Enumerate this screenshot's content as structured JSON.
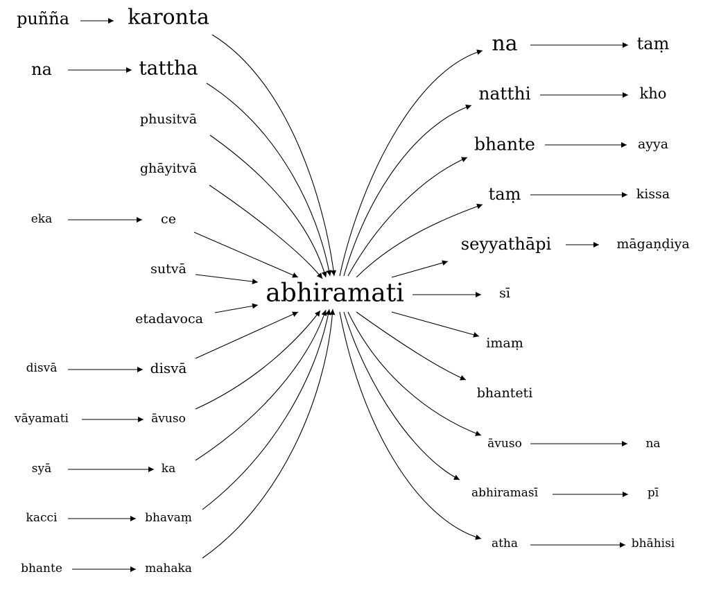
{
  "center": {
    "id": "c",
    "label": "abhiramati"
  },
  "nodes": [
    {
      "id": "L0a",
      "label": "puñña"
    },
    {
      "id": "L0",
      "label": "karonta"
    },
    {
      "id": "L1a",
      "label": "na"
    },
    {
      "id": "L1",
      "label": "tattha"
    },
    {
      "id": "L2",
      "label": "phusitvā"
    },
    {
      "id": "L3",
      "label": "ghāyitvā"
    },
    {
      "id": "L4a",
      "label": "eka"
    },
    {
      "id": "L4",
      "label": "ce"
    },
    {
      "id": "L5",
      "label": "sutvā"
    },
    {
      "id": "L6",
      "label": "etadavoca"
    },
    {
      "id": "L7a",
      "label": "disvā"
    },
    {
      "id": "L7",
      "label": "disvā"
    },
    {
      "id": "L8a",
      "label": "vāyamati"
    },
    {
      "id": "L8",
      "label": "āvuso"
    },
    {
      "id": "L9a",
      "label": "syā"
    },
    {
      "id": "L9",
      "label": "ka"
    },
    {
      "id": "L10a",
      "label": "kacci"
    },
    {
      "id": "L10",
      "label": "bhavaṃ"
    },
    {
      "id": "L11a",
      "label": "bhante"
    },
    {
      "id": "L11",
      "label": "mahaka"
    },
    {
      "id": "R0",
      "label": "na"
    },
    {
      "id": "R0b",
      "label": "taṃ"
    },
    {
      "id": "R1",
      "label": "natthi"
    },
    {
      "id": "R1b",
      "label": "kho"
    },
    {
      "id": "R2",
      "label": "bhante"
    },
    {
      "id": "R2b",
      "label": "ayya"
    },
    {
      "id": "R3",
      "label": "taṃ"
    },
    {
      "id": "R3b",
      "label": "kissa"
    },
    {
      "id": "R4",
      "label": "seyyathāpi"
    },
    {
      "id": "R4b",
      "label": "māgaṇḍiya"
    },
    {
      "id": "R5",
      "label": "sī"
    },
    {
      "id": "R6",
      "label": "imaṃ"
    },
    {
      "id": "R7",
      "label": "bhanteti"
    },
    {
      "id": "R8",
      "label": "āvuso"
    },
    {
      "id": "R8b",
      "label": "na"
    },
    {
      "id": "R9",
      "label": "abhiramasī"
    },
    {
      "id": "R9b",
      "label": "pī"
    },
    {
      "id": "R10",
      "label": "atha"
    },
    {
      "id": "R10b",
      "label": "bhāhisi"
    }
  ],
  "edges": [
    {
      "from": "L0a",
      "to": "L0"
    },
    {
      "from": "L0",
      "to": "c"
    },
    {
      "from": "L1a",
      "to": "L1"
    },
    {
      "from": "L1",
      "to": "c"
    },
    {
      "from": "L2",
      "to": "c"
    },
    {
      "from": "L3",
      "to": "c"
    },
    {
      "from": "L4a",
      "to": "L4"
    },
    {
      "from": "L4",
      "to": "c"
    },
    {
      "from": "L5",
      "to": "c"
    },
    {
      "from": "L6",
      "to": "c"
    },
    {
      "from": "L7a",
      "to": "L7"
    },
    {
      "from": "L7",
      "to": "c"
    },
    {
      "from": "L8a",
      "to": "L8"
    },
    {
      "from": "L8",
      "to": "c"
    },
    {
      "from": "L9a",
      "to": "L9"
    },
    {
      "from": "L9",
      "to": "c"
    },
    {
      "from": "L10a",
      "to": "L10"
    },
    {
      "from": "L10",
      "to": "c"
    },
    {
      "from": "L11a",
      "to": "L11"
    },
    {
      "from": "L11",
      "to": "c"
    },
    {
      "from": "c",
      "to": "R0"
    },
    {
      "from": "R0",
      "to": "R0b"
    },
    {
      "from": "c",
      "to": "R1"
    },
    {
      "from": "R1",
      "to": "R1b"
    },
    {
      "from": "c",
      "to": "R2"
    },
    {
      "from": "R2",
      "to": "R2b"
    },
    {
      "from": "c",
      "to": "R3"
    },
    {
      "from": "R3",
      "to": "R3b"
    },
    {
      "from": "c",
      "to": "R4"
    },
    {
      "from": "R4",
      "to": "R4b"
    },
    {
      "from": "c",
      "to": "R5"
    },
    {
      "from": "c",
      "to": "R6"
    },
    {
      "from": "c",
      "to": "R7"
    },
    {
      "from": "c",
      "to": "R8"
    },
    {
      "from": "R8",
      "to": "R8b"
    },
    {
      "from": "c",
      "to": "R9"
    },
    {
      "from": "R9",
      "to": "R9b"
    },
    {
      "from": "c",
      "to": "R10"
    },
    {
      "from": "R10",
      "to": "R10b"
    }
  ]
}
